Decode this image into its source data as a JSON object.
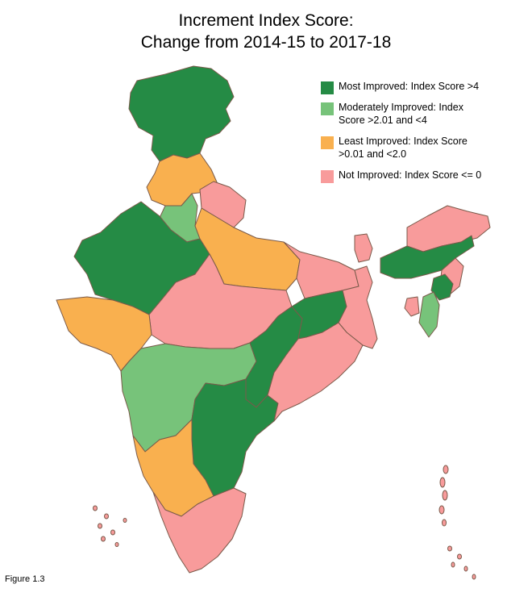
{
  "title": {
    "line1": "Increment Index Score:",
    "line2": "Change from 2014-15 to 2017-18"
  },
  "legend": [
    {
      "label": "Most Improved: Index Score >4",
      "color": "#258b45"
    },
    {
      "label": "Moderately Improved: Index Score >2.01 and <4",
      "color": "#77c37a"
    },
    {
      "label": "Least Improved: Index Score >0.01 and <2.0",
      "color": "#f9b04f"
    },
    {
      "label": "Not Improved: Index Score <= 0",
      "color": "#f89b9b"
    }
  ],
  "figure_label": "Figure 1.3",
  "colors": {
    "most": "#258b45",
    "moderate": "#77c37a",
    "least": "#f9b04f",
    "none": "#f89b9b",
    "border": "#7a5a4a"
  }
}
